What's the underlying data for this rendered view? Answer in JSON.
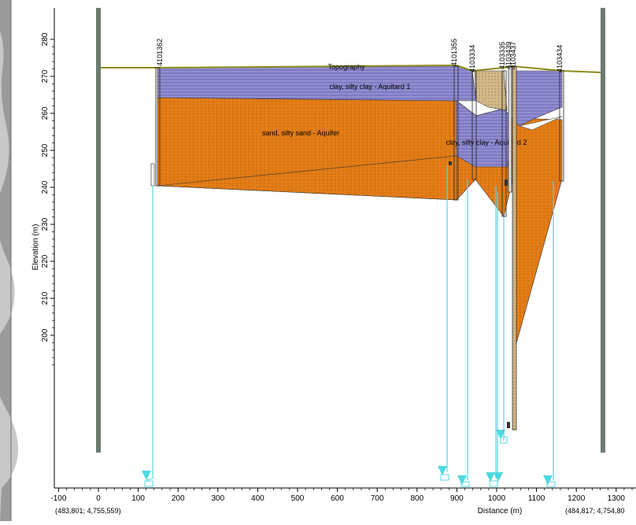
{
  "section": {
    "y_axis_title": "Elevation (m)",
    "x_axis_title": "Distance (m)",
    "y_ticks": [
      "280",
      "270",
      "260",
      "250",
      "240",
      "230",
      "220",
      "210",
      "200"
    ],
    "x_ticks": [
      "-100",
      "0",
      "100",
      "200",
      "300",
      "400",
      "500",
      "600",
      "700",
      "800",
      "900",
      "1000",
      "1100",
      "1200",
      "1300"
    ],
    "start_coordinate": "(483,801; 4,755,559)",
    "end_coordinate": "(484,817; 4,754,80",
    "layer_labels": {
      "topography": "Topography",
      "aquitard1": "clay, silty clay - Aquitard 1",
      "aquifer": "sand, silty sand - Aquifer",
      "aquitard2": "clay, silty clay - Aquitard 2"
    },
    "wells": [
      "4101362",
      "4101355",
      "4103334",
      "4103335",
      "4103439",
      "4103437",
      "4103434"
    ],
    "colors": {
      "aquifer": "#e07a14",
      "aquitard": "#8a86cc",
      "topography": "#8c8c1c",
      "well_line": "#4fd8e0",
      "frame_bar": "#6b7b70",
      "sand_fill": "#d2b98a"
    }
  }
}
